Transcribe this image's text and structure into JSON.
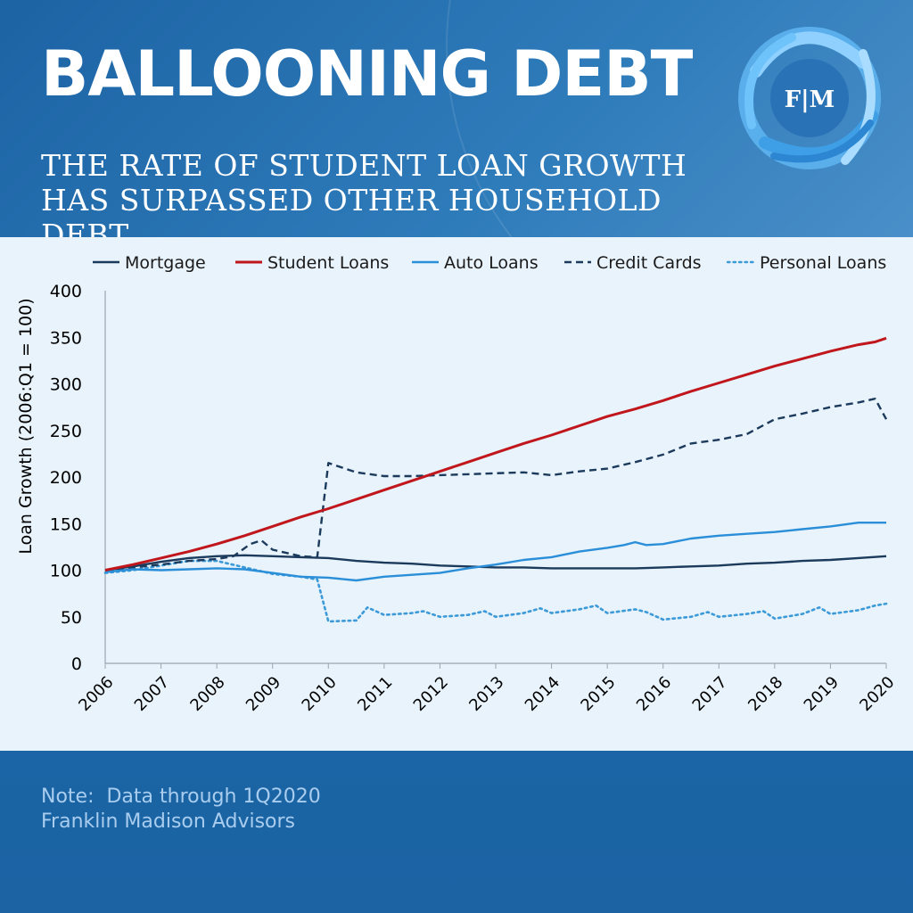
{
  "header": {
    "title": "BALLOONING DEBT",
    "subtitle": "THE RATE OF STUDENT LOAN GROWTH HAS SURPASSED OTHER HOUSEHOLD DEBT",
    "logo_text": "F|M"
  },
  "footer": {
    "note": "Note:  Data through 1Q2020",
    "source": "Franklin Madison Advisors"
  },
  "colors": {
    "header_bg": "#2a74b5",
    "chart_bg": "#e8f3fb",
    "footer_bg": "#1b64a5",
    "mortgage": "#1b3a5c",
    "student": "#c0161c",
    "auto": "#2a8ed8",
    "credit": "#1b3a5c",
    "personal": "#3c9ad8"
  },
  "chart_data": {
    "type": "line",
    "title": "",
    "xlabel": "",
    "ylabel": "Loan Growth (2006:Q1 = 100)",
    "ylim": [
      0,
      400
    ],
    "yticks": [
      0,
      50,
      100,
      150,
      200,
      250,
      300,
      350,
      400
    ],
    "xlim": [
      2006,
      2020
    ],
    "xticks": [
      "2006",
      "2007",
      "2008",
      "2009",
      "2010",
      "2011",
      "2012",
      "2013",
      "2014",
      "2015",
      "2016",
      "2017",
      "2018",
      "2019",
      "2020"
    ],
    "legend_position": "top",
    "grid": false,
    "series": [
      {
        "name": "Mortgage",
        "style": "solid",
        "color": "#1b3a5c",
        "points": [
          [
            2006.0,
            100
          ],
          [
            2006.5,
            104
          ],
          [
            2007.0,
            109
          ],
          [
            2007.5,
            113
          ],
          [
            2008.0,
            115
          ],
          [
            2008.5,
            116
          ],
          [
            2009.0,
            115
          ],
          [
            2009.5,
            114
          ],
          [
            2010.0,
            113
          ],
          [
            2010.5,
            110
          ],
          [
            2011.0,
            108
          ],
          [
            2011.5,
            107
          ],
          [
            2012.0,
            105
          ],
          [
            2012.5,
            104
          ],
          [
            2013.0,
            103
          ],
          [
            2013.5,
            103
          ],
          [
            2014.0,
            102
          ],
          [
            2014.5,
            102
          ],
          [
            2015.0,
            102
          ],
          [
            2015.5,
            102
          ],
          [
            2016.0,
            103
          ],
          [
            2016.5,
            104
          ],
          [
            2017.0,
            105
          ],
          [
            2017.5,
            107
          ],
          [
            2018.0,
            108
          ],
          [
            2018.5,
            110
          ],
          [
            2019.0,
            111
          ],
          [
            2019.5,
            113
          ],
          [
            2020.0,
            115
          ]
        ]
      },
      {
        "name": "Student Loans",
        "style": "solid",
        "color": "#c0161c",
        "points": [
          [
            2006.0,
            100
          ],
          [
            2006.5,
            106
          ],
          [
            2007.0,
            113
          ],
          [
            2007.5,
            120
          ],
          [
            2008.0,
            128
          ],
          [
            2008.5,
            137
          ],
          [
            2009.0,
            147
          ],
          [
            2009.5,
            157
          ],
          [
            2010.0,
            166
          ],
          [
            2010.5,
            176
          ],
          [
            2011.0,
            186
          ],
          [
            2011.5,
            196
          ],
          [
            2012.0,
            206
          ],
          [
            2012.5,
            216
          ],
          [
            2013.0,
            226
          ],
          [
            2013.5,
            236
          ],
          [
            2014.0,
            245
          ],
          [
            2014.5,
            255
          ],
          [
            2015.0,
            265
          ],
          [
            2015.5,
            273
          ],
          [
            2016.0,
            282
          ],
          [
            2016.5,
            292
          ],
          [
            2017.0,
            301
          ],
          [
            2017.5,
            310
          ],
          [
            2018.0,
            319
          ],
          [
            2018.5,
            327
          ],
          [
            2019.0,
            335
          ],
          [
            2019.5,
            342
          ],
          [
            2019.8,
            345
          ],
          [
            2020.0,
            349
          ]
        ]
      },
      {
        "name": "Auto Loans",
        "style": "solid",
        "color": "#2a8ed8",
        "points": [
          [
            2006.0,
            98
          ],
          [
            2006.5,
            101
          ],
          [
            2007.0,
            100
          ],
          [
            2007.5,
            101
          ],
          [
            2008.0,
            102
          ],
          [
            2008.5,
            101
          ],
          [
            2009.0,
            97
          ],
          [
            2009.5,
            93
          ],
          [
            2010.0,
            92
          ],
          [
            2010.5,
            89
          ],
          [
            2011.0,
            93
          ],
          [
            2011.5,
            95
          ],
          [
            2012.0,
            97
          ],
          [
            2012.5,
            102
          ],
          [
            2013.0,
            106
          ],
          [
            2013.5,
            111
          ],
          [
            2014.0,
            114
          ],
          [
            2014.5,
            120
          ],
          [
            2015.0,
            124
          ],
          [
            2015.3,
            127
          ],
          [
            2015.5,
            130
          ],
          [
            2015.7,
            127
          ],
          [
            2016.0,
            128
          ],
          [
            2016.5,
            134
          ],
          [
            2017.0,
            137
          ],
          [
            2017.5,
            139
          ],
          [
            2018.0,
            141
          ],
          [
            2018.5,
            144
          ],
          [
            2019.0,
            147
          ],
          [
            2019.5,
            151
          ],
          [
            2020.0,
            151
          ]
        ]
      },
      {
        "name": "Credit Cards",
        "style": "dashed",
        "color": "#1b3a5c",
        "points": [
          [
            2006.0,
            100
          ],
          [
            2006.5,
            103
          ],
          [
            2007.0,
            106
          ],
          [
            2007.5,
            110
          ],
          [
            2008.0,
            112
          ],
          [
            2008.3,
            115
          ],
          [
            2008.6,
            128
          ],
          [
            2008.8,
            132
          ],
          [
            2009.0,
            122
          ],
          [
            2009.5,
            115
          ],
          [
            2009.8,
            114
          ],
          [
            2010.0,
            215
          ],
          [
            2010.5,
            205
          ],
          [
            2011.0,
            201
          ],
          [
            2011.5,
            201
          ],
          [
            2012.0,
            202
          ],
          [
            2012.5,
            203
          ],
          [
            2013.0,
            204
          ],
          [
            2013.5,
            205
          ],
          [
            2014.0,
            202
          ],
          [
            2014.5,
            206
          ],
          [
            2015.0,
            209
          ],
          [
            2015.5,
            216
          ],
          [
            2016.0,
            224
          ],
          [
            2016.5,
            236
          ],
          [
            2017.0,
            240
          ],
          [
            2017.5,
            246
          ],
          [
            2018.0,
            262
          ],
          [
            2018.5,
            268
          ],
          [
            2019.0,
            275
          ],
          [
            2019.5,
            280
          ],
          [
            2019.8,
            284
          ],
          [
            2020.0,
            262
          ]
        ]
      },
      {
        "name": "Personal Loans",
        "style": "dotted",
        "color": "#3c9ad8",
        "points": [
          [
            2006.0,
            97
          ],
          [
            2006.5,
            100
          ],
          [
            2007.0,
            105
          ],
          [
            2007.5,
            110
          ],
          [
            2008.0,
            110
          ],
          [
            2008.5,
            103
          ],
          [
            2009.0,
            96
          ],
          [
            2009.5,
            93
          ],
          [
            2009.8,
            90
          ],
          [
            2010.0,
            45
          ],
          [
            2010.5,
            46
          ],
          [
            2010.7,
            60
          ],
          [
            2011.0,
            52
          ],
          [
            2011.5,
            54
          ],
          [
            2011.7,
            56
          ],
          [
            2012.0,
            50
          ],
          [
            2012.5,
            52
          ],
          [
            2012.8,
            56
          ],
          [
            2013.0,
            50
          ],
          [
            2013.5,
            54
          ],
          [
            2013.8,
            59
          ],
          [
            2014.0,
            54
          ],
          [
            2014.5,
            58
          ],
          [
            2014.8,
            62
          ],
          [
            2015.0,
            54
          ],
          [
            2015.5,
            58
          ],
          [
            2015.7,
            55
          ],
          [
            2016.0,
            47
          ],
          [
            2016.5,
            50
          ],
          [
            2016.8,
            55
          ],
          [
            2017.0,
            50
          ],
          [
            2017.5,
            53
          ],
          [
            2017.8,
            56
          ],
          [
            2018.0,
            48
          ],
          [
            2018.5,
            53
          ],
          [
            2018.8,
            60
          ],
          [
            2019.0,
            53
          ],
          [
            2019.5,
            57
          ],
          [
            2019.8,
            62
          ],
          [
            2020.0,
            64
          ]
        ]
      }
    ]
  }
}
